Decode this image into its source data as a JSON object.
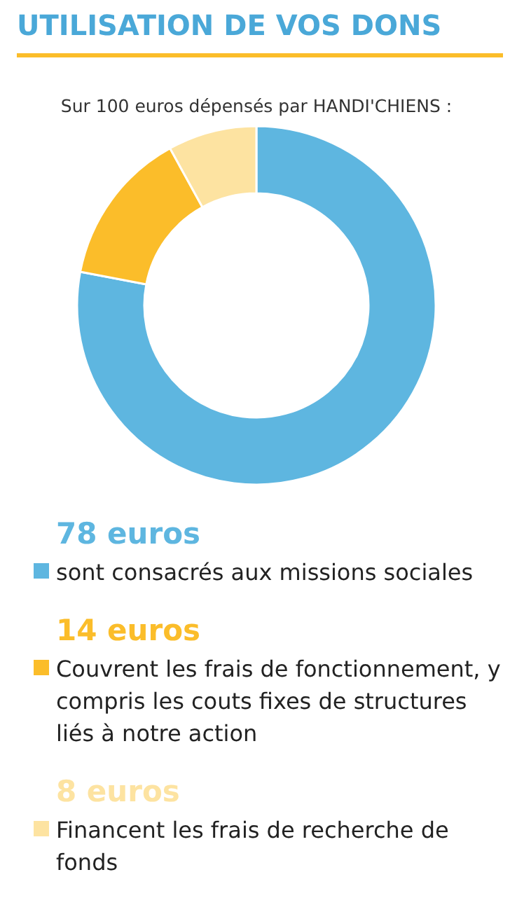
{
  "chart_data": {
    "type": "donut",
    "title": "UTILISATION DE VOS DONS",
    "subtitle": "Sur 100 euros dépensés par HANDI'CHIENS :",
    "categories": [
      "sont consacrés aux missions sociales",
      "Couvrent les frais de fonctionnement, y compris les couts fixes de structures liés à notre action",
      "Financent les frais de recherche de fonds"
    ],
    "values": [
      78,
      14,
      8
    ],
    "colors": [
      "#5eb6e0",
      "#fbbd2a",
      "#fde3a1"
    ],
    "value_labels": [
      "78 euros",
      "14 euros",
      "8 euros"
    ],
    "legend": "bottom"
  }
}
